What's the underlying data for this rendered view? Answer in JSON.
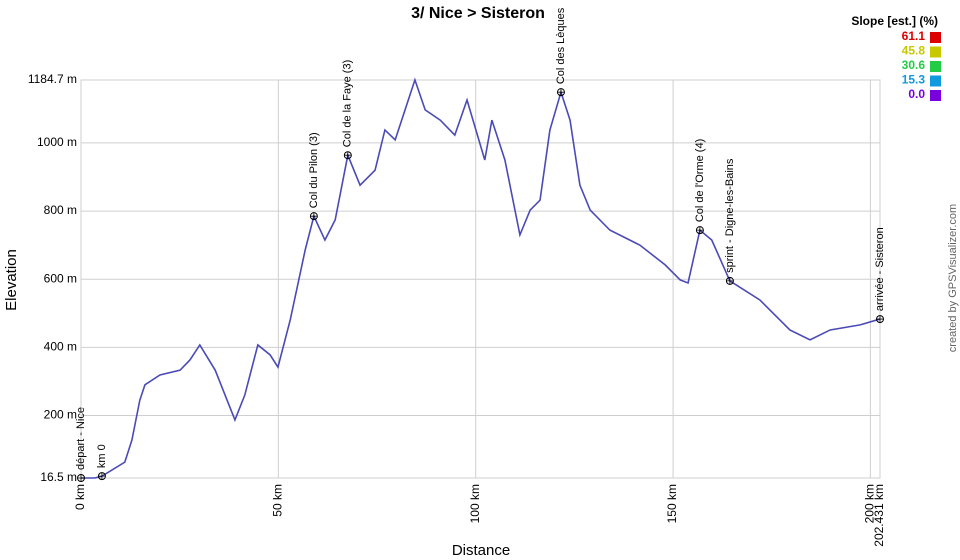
{
  "chart_data": {
    "type": "line",
    "title": "3/ Nice > Sisteron",
    "x_label": "Distance",
    "y_label": "Elevation",
    "credit": "created by GPSVisualizer.com",
    "x": [
      0,
      3.5,
      5.3,
      11.1,
      12.9,
      14.9,
      16.2,
      20,
      25.1,
      27.6,
      30.1,
      34,
      36.5,
      39,
      41.5,
      44.8,
      47.9,
      49.9,
      53,
      56.8,
      59,
      61.8,
      64.4,
      67.6,
      70.7,
      74.5,
      77,
      79.6,
      82.1,
      84.6,
      87.2,
      91,
      94.7,
      97.8,
      102.3,
      104.1,
      107.4,
      111.2,
      113.8,
      116.3,
      118.8,
      121.6,
      123.9,
      126.4,
      129,
      134,
      141.6,
      148,
      151.8,
      153.8,
      156.8,
      159.8,
      164.4,
      172,
      179.6,
      184.7,
      189.8,
      197.4,
      202.4
    ],
    "series": [
      {
        "color": "#4a4ab8",
        "values": [
          16.5,
          16.5,
          22,
          63,
          128,
          245,
          290,
          319,
          333,
          363,
          407,
          333,
          260,
          187,
          260,
          407,
          378,
          342,
          480,
          686,
          785,
          715,
          774,
          964,
          876,
          920,
          1038,
          1009,
          1097,
          1185,
          1097,
          1067,
          1023,
          1126,
          950,
          1067,
          950,
          730,
          803,
          832,
          1038,
          1149,
          1067,
          876,
          803,
          744,
          700,
          642,
          598,
          589,
          744,
          715,
          595,
          539,
          451,
          422,
          451,
          466,
          483
        ]
      }
    ],
    "xlim": [
      0,
      202.431
    ],
    "ylim": [
      16.5,
      1184.7
    ],
    "xticks": [
      {
        "value": 0,
        "label": "0 km"
      },
      {
        "value": 50,
        "label": "50 km"
      },
      {
        "value": 100,
        "label": "100 km"
      },
      {
        "value": 150,
        "label": "150 km"
      },
      {
        "value": 200,
        "label": "200 km"
      },
      {
        "value": 202.431,
        "label": "202.431 km"
      }
    ],
    "yticks": [
      {
        "value": 16.5,
        "label": "16.5 m"
      },
      {
        "value": 200,
        "label": "200 m"
      },
      {
        "value": 400,
        "label": "400 m"
      },
      {
        "value": 600,
        "label": "600 m"
      },
      {
        "value": 800,
        "label": "800 m"
      },
      {
        "value": 1000,
        "label": "1000 m"
      },
      {
        "value": 1184.7,
        "label": "1184.7 m"
      }
    ],
    "grid": true,
    "waypoints": [
      {
        "label": "départ - Nice",
        "x": 0,
        "y": 16.5
      },
      {
        "label": "km 0",
        "x": 5.3,
        "y": 22
      },
      {
        "label": "Col du Pilon (3)",
        "x": 59,
        "y": 785
      },
      {
        "label": "Col de la Faye (3)",
        "x": 67.6,
        "y": 964
      },
      {
        "label": "Col des Lèques",
        "x": 121.6,
        "y": 1149
      },
      {
        "label": "Col de l'Orme (4)",
        "x": 156.8,
        "y": 744
      },
      {
        "label": "sprint - Digne-les-Bains",
        "x": 164.4,
        "y": 595
      },
      {
        "label": "arrivée - Sisteron",
        "x": 202.431,
        "y": 483
      }
    ],
    "slope_legend": {
      "title": "Slope [est.] (%)",
      "values": [
        61.1,
        45.8,
        30.6,
        15.3,
        0
      ],
      "value_labels": [
        "61.1",
        "45.8",
        "30.6",
        "15.3",
        "0.0"
      ],
      "colors": [
        "#dd0000",
        "#c8c800",
        "#22cc44",
        "#1199dd",
        "#7700dd"
      ]
    }
  }
}
